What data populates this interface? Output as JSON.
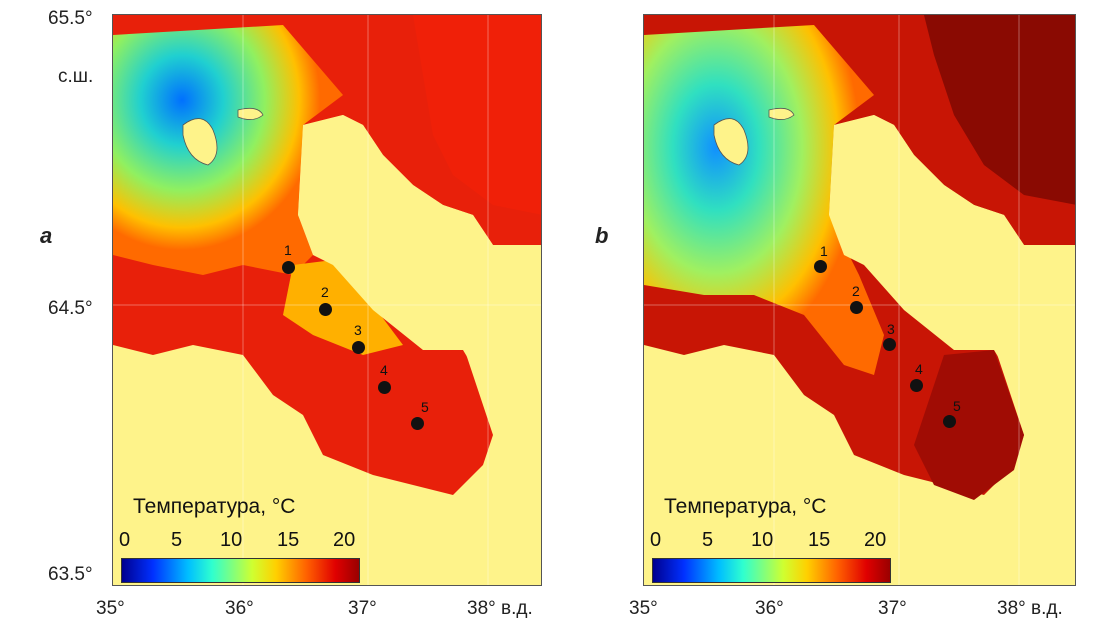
{
  "panels": [
    {
      "letter": "a",
      "stations": [
        "1",
        "2",
        "3",
        "4",
        "5"
      ]
    },
    {
      "letter": "b",
      "stations": [
        "1",
        "2",
        "3",
        "4",
        "5"
      ]
    }
  ],
  "lat_labels": {
    "top": "65.5°",
    "top_unit": "с.ш.",
    "mid": "64.5°",
    "bottom": "63.5°"
  },
  "lon_labels": [
    "35°",
    "36°",
    "37°",
    "38° в.д."
  ],
  "colorbar": {
    "title": "Температура, °C",
    "ticks": [
      "0",
      "5",
      "10",
      "15",
      "20"
    ],
    "range": [
      0,
      20
    ]
  },
  "colors": {
    "land": "#fef38a",
    "sea_warm": "#e8200a",
    "sea_cool": "#29d9b0",
    "station": "#111111"
  }
}
